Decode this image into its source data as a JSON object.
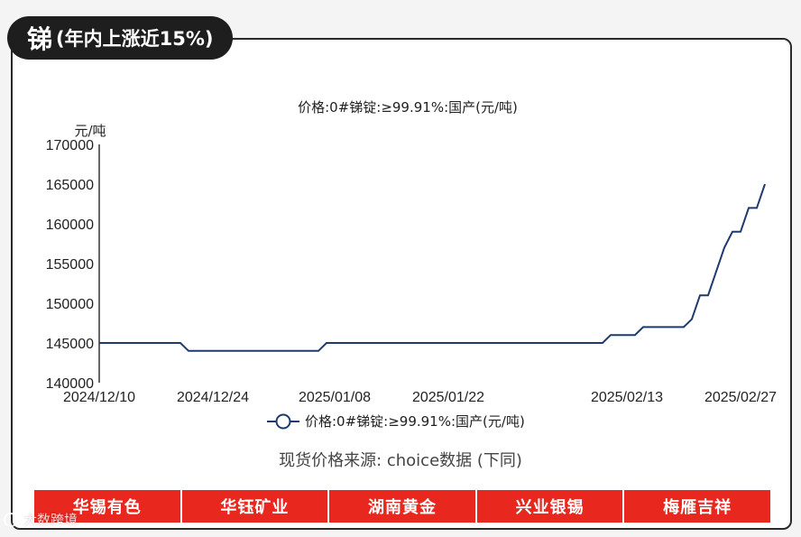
{
  "header": {
    "title": "锑",
    "subtitle": "(年内上涨近15%)"
  },
  "chart_data": {
    "type": "line",
    "title": "价格:0#锑锭:≥99.91%:国产(元/吨)",
    "unit_label": "元/吨",
    "xlabel": "",
    "ylabel": "",
    "ylim": [
      140000,
      170000
    ],
    "yticks": [
      140000,
      145000,
      150000,
      155000,
      160000,
      165000,
      170000
    ],
    "xticks": [
      "2024/12/10",
      "2024/12/24",
      "2025/01/08",
      "2025/01/22",
      "2025/02/13",
      "2025/02/27"
    ],
    "grid": false,
    "legend_position": "bottom",
    "line_color": "#1f3a6e",
    "series": [
      {
        "name": "价格:0#锑锭:≥99.91%:国产(元/吨)",
        "points": [
          [
            "2024/12/10",
            145000
          ],
          [
            "2024/12/20",
            145000
          ],
          [
            "2024/12/21",
            144000
          ],
          [
            "2025/01/06",
            144000
          ],
          [
            "2025/01/07",
            145000
          ],
          [
            "2025/02/10",
            145000
          ],
          [
            "2025/02/11",
            146000
          ],
          [
            "2025/02/14",
            146000
          ],
          [
            "2025/02/15",
            147000
          ],
          [
            "2025/02/20",
            147000
          ],
          [
            "2025/02/21",
            148000
          ],
          [
            "2025/02/22",
            151000
          ],
          [
            "2025/02/23",
            151000
          ],
          [
            "2025/02/24",
            154000
          ],
          [
            "2025/02/25",
            157000
          ],
          [
            "2025/02/26",
            159000
          ],
          [
            "2025/02/27",
            159000
          ],
          [
            "2025/02/28",
            162000
          ],
          [
            "2025/03/01",
            162000
          ],
          [
            "2025/03/02",
            165000
          ]
        ]
      }
    ]
  },
  "source_note": "现货价格来源: choice数据 (下同)",
  "companies": [
    "华锡有色",
    "华钰矿业",
    "湖南黄金",
    "兴业银锡",
    "梅雁吉祥"
  ],
  "watermark": "大数跨境",
  "colors": {
    "accent": "#e8271e",
    "title_bg": "#1e1e1e",
    "line": "#1f3a6e"
  }
}
